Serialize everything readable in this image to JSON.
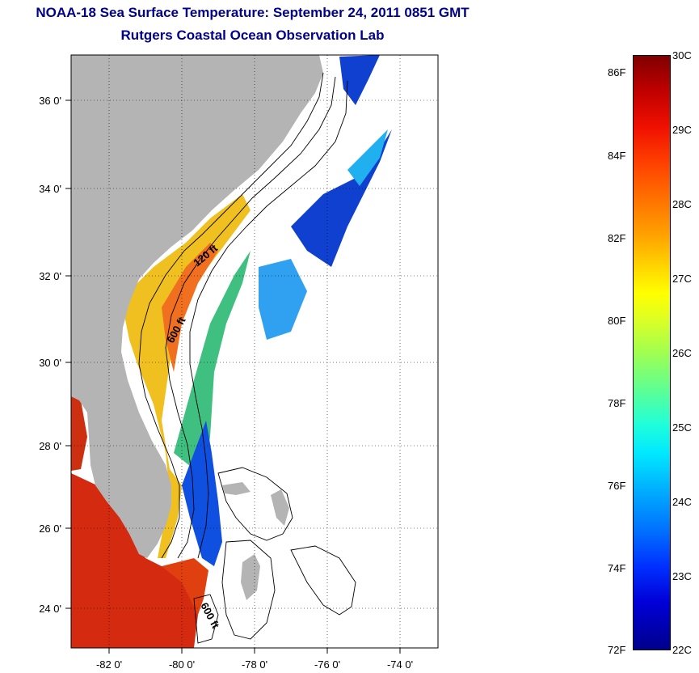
{
  "title": {
    "line1": "NOAA-18 Sea Surface Temperature:  September 24, 2011 0851 GMT",
    "line2": "Rutgers Coastal Ocean Observation Lab"
  },
  "map": {
    "lon_ticks": [
      {
        "value": -82,
        "label": "-82 0'"
      },
      {
        "value": -80,
        "label": "-80 0'"
      },
      {
        "value": -78,
        "label": "-78 0'"
      },
      {
        "value": -76,
        "label": "-76 0'"
      },
      {
        "value": -74,
        "label": "-74 0'"
      }
    ],
    "lat_ticks": [
      {
        "value": 24,
        "label": "24 0'"
      },
      {
        "value": 26,
        "label": "26 0'"
      },
      {
        "value": 28,
        "label": "28 0'"
      },
      {
        "value": 30,
        "label": "30 0'"
      },
      {
        "value": 32,
        "label": "32 0'"
      },
      {
        "value": 34,
        "label": "34 0'"
      },
      {
        "value": 36,
        "label": "36 0'"
      }
    ],
    "contour_labels": [
      "120 ft",
      "600 ft",
      "600 ft"
    ],
    "colors": {
      "land": "#b4b4b4",
      "ocean_nodata": "#ffffff",
      "title": "#00008b"
    }
  },
  "colorbar": {
    "celsius": [
      "30C",
      "29C",
      "28C",
      "27C",
      "26C",
      "25C",
      "24C",
      "23C",
      "22C"
    ],
    "fahrenheit": [
      "86F",
      "84F",
      "82F",
      "80F",
      "78F",
      "76F",
      "74F",
      "72F"
    ],
    "min_c": 22,
    "max_c": 30
  }
}
